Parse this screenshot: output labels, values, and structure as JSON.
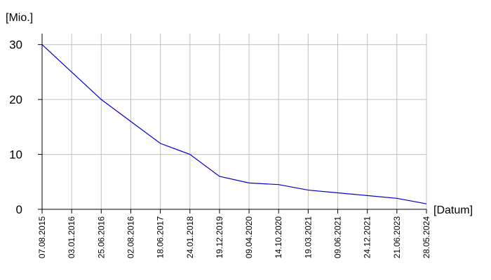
{
  "chart_data": {
    "type": "line",
    "ylabel": "[Mio.]",
    "xlabel": "[Datum]",
    "ylim": [
      0,
      32
    ],
    "y_ticks": [
      0,
      10,
      20,
      30
    ],
    "y_tick_labels": [
      "0",
      "10",
      "20",
      "30"
    ],
    "grid": true,
    "colors": {
      "line": "#0000cc",
      "grid": "#c0c0c0",
      "axis": "#000000"
    },
    "categories": [
      "07.08.2015",
      "03.01.2016",
      "25.06.2016",
      "02.08.2016",
      "18.06.2017",
      "24.01.2018",
      "19.12.2019",
      "09.04.2020",
      "14.10.2020",
      "19.03.2021",
      "09.06.2021",
      "24.12.2021",
      "21.06.2023",
      "28.05.2024"
    ],
    "series": [
      {
        "values": [
          30,
          25,
          20,
          16,
          12,
          10,
          6,
          4.8,
          4.5,
          3.5,
          3,
          2.5,
          2,
          1
        ]
      }
    ]
  }
}
